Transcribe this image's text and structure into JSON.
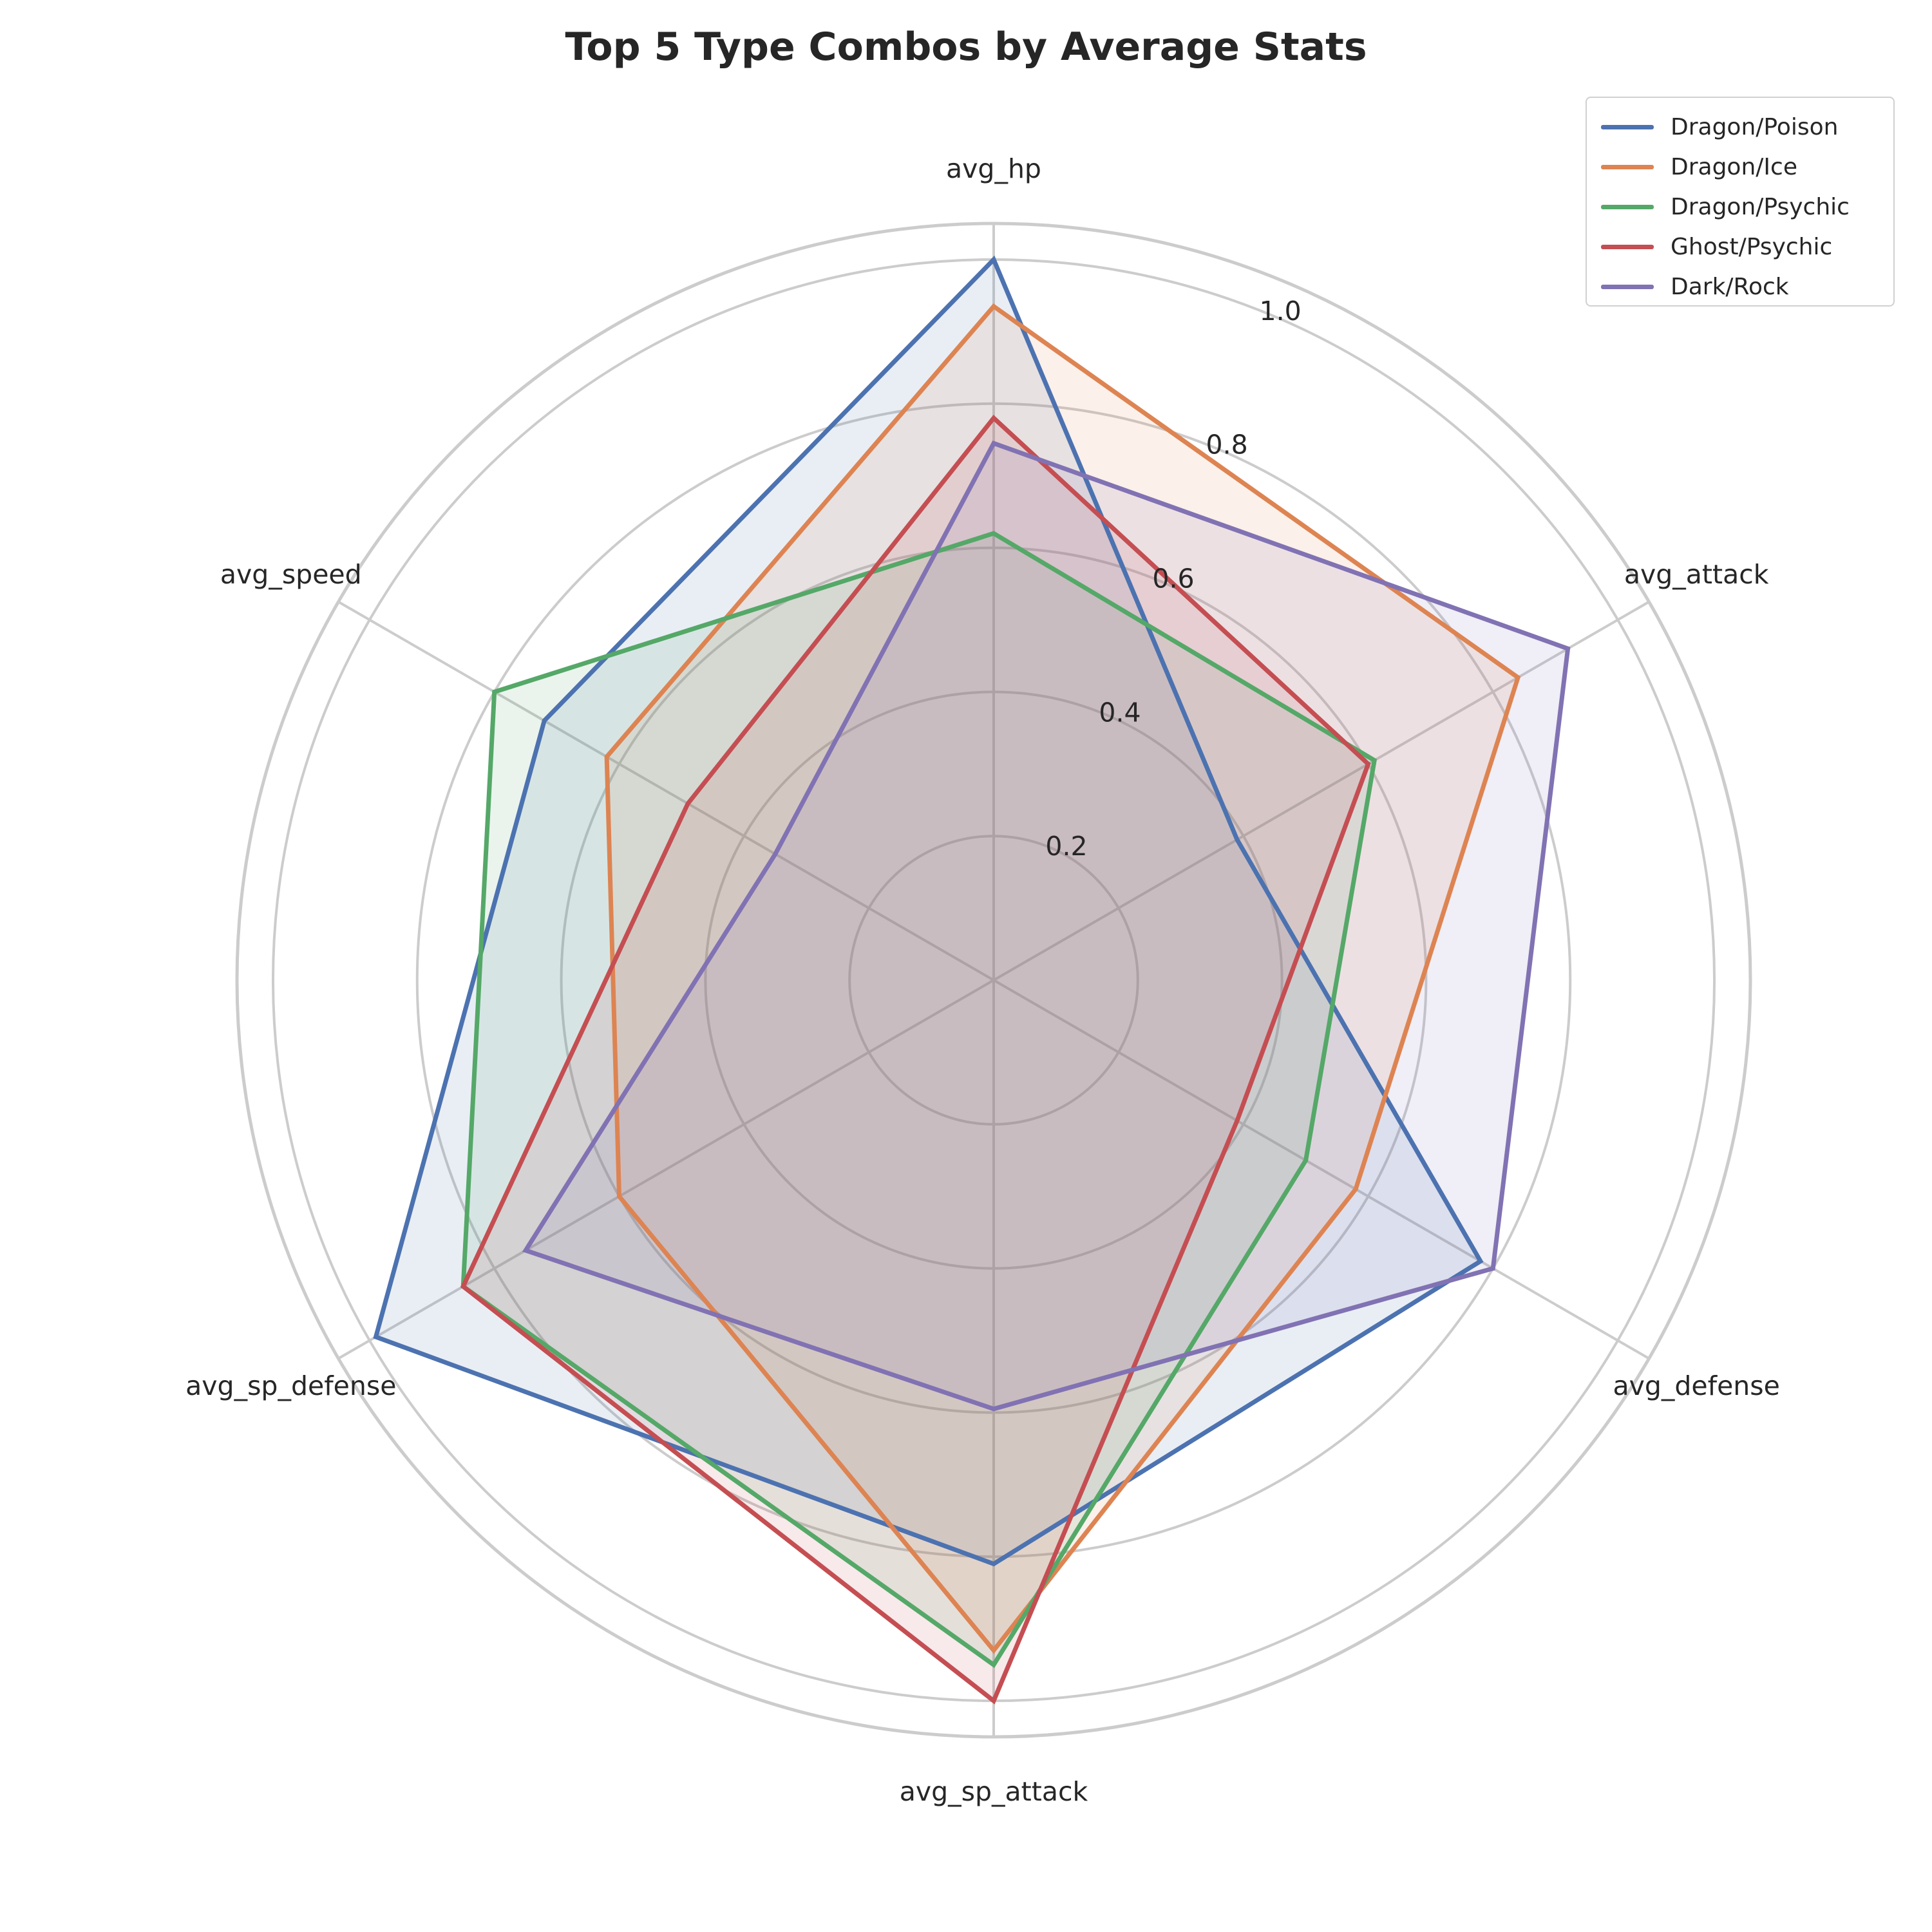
{
  "chart_data": {
    "type": "radar",
    "title": "Top 5 Type Combos by Average Stats",
    "axes": [
      "avg_hp",
      "avg_attack",
      "avg_defense",
      "avg_sp_attack",
      "avg_sp_defense",
      "avg_speed"
    ],
    "rlim": [
      0,
      1.05
    ],
    "rticks": [
      0.2,
      0.4,
      0.6,
      0.8,
      1.0
    ],
    "rtick_labels": [
      "0.2",
      "0.4",
      "0.6",
      "0.8",
      "1.0"
    ],
    "grid": true,
    "legend_position": "top-right",
    "series": [
      {
        "name": "Dragon/Poison",
        "color": "#4c72b0",
        "values": [
          1.0,
          0.39,
          0.78,
          0.81,
          0.99,
          0.72
        ]
      },
      {
        "name": "Dragon/Ice",
        "color": "#dd8452",
        "values": [
          0.935,
          0.84,
          0.58,
          0.93,
          0.6,
          0.62
        ]
      },
      {
        "name": "Dragon/Psychic",
        "color": "#55a868",
        "values": [
          0.62,
          0.61,
          0.5,
          0.95,
          0.85,
          0.8
        ]
      },
      {
        "name": "Ghost/Psychic",
        "color": "#c44e52",
        "values": [
          0.78,
          0.6,
          0.39,
          1.0,
          0.85,
          0.49
        ]
      },
      {
        "name": "Dark/Rock",
        "color": "#8172b3",
        "values": [
          0.745,
          0.92,
          0.8,
          0.595,
          0.75,
          0.35
        ]
      }
    ]
  }
}
